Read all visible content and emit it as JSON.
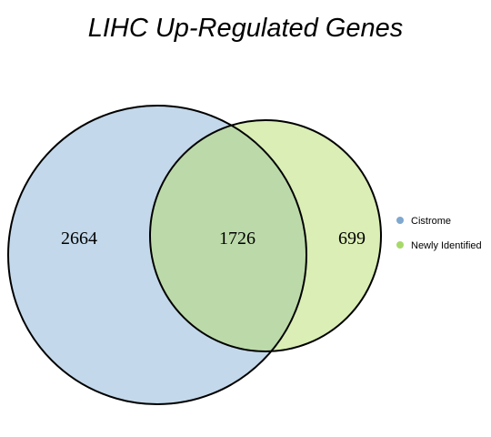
{
  "title": "LIHC Up-Regulated Genes",
  "sets": [
    {
      "name": "Cistrome",
      "color": "#7fa8cf",
      "fill": "#c3d8ea"
    },
    {
      "name": "Newly Identified",
      "color": "#a6d96a",
      "fill": "#daeeb5"
    }
  ],
  "intersection_fill": "#bcdaa9",
  "counts": {
    "cistrome_only": "2664",
    "overlap": "1726",
    "newly_identified_only": "699"
  }
}
